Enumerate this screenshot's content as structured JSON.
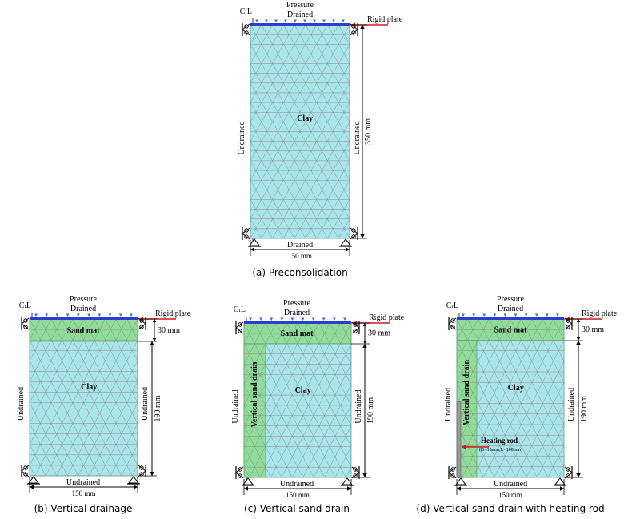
{
  "panels": [
    {
      "id": "a",
      "caption": "(a) Preconsolidation",
      "centerline": "CₗL",
      "top_load": "Pressure",
      "top_drain": "Drained",
      "rigid_plate": "Rigid plate",
      "left_boundary": "Undrained",
      "right_boundary": "Undrained",
      "bottom_boundary": "Drained",
      "width_dim": "150 mm",
      "height_dim": "350 mm",
      "clay_label": "Clay"
    },
    {
      "id": "b",
      "caption": "(b) Vertical drainage",
      "centerline": "CₗL",
      "top_load": "Pressure",
      "top_drain": "Drained",
      "rigid_plate": "Rigid plate",
      "left_boundary": "Undrained",
      "right_boundary": "Undrained",
      "bottom_boundary": "Undrained",
      "width_dim": "150 mm",
      "sand_mat_dim": "30 mm",
      "height_dim": "190 mm",
      "sand_mat_label": "Sand mat",
      "clay_label": "Clay"
    },
    {
      "id": "c",
      "caption": "(c) Vertical sand drain",
      "centerline": "CₗL",
      "top_load": "Pressure",
      "top_drain": "Drained",
      "rigid_plate": "Rigid plate",
      "left_boundary": "Undrained",
      "right_boundary": "Undrained",
      "bottom_boundary": "Undrained",
      "width_dim": "150 mm",
      "sand_mat_dim": "30 mm",
      "height_dim": "190 mm",
      "sand_mat_label": "Sand mat",
      "clay_label": "Clay",
      "drain_label": "Vertical sand drain"
    },
    {
      "id": "d",
      "caption": "(d) Vertical sand drain with heating rod",
      "centerline": "CₗL",
      "top_load": "Pressure",
      "top_drain": "Drained",
      "rigid_plate": "Rigid plate",
      "left_boundary": "Undrained",
      "right_boundary": "Undrained",
      "bottom_boundary": "Undrained",
      "width_dim": "150 mm",
      "sand_mat_dim": "30 mm",
      "height_dim": "190 mm",
      "sand_mat_label": "Sand mat",
      "clay_label": "Clay",
      "drain_label": "Vertical sand drain",
      "heating_rod_label": "Heating rod",
      "heating_rod_spec": "(D=10mm;L=100mm)"
    }
  ],
  "colors": {
    "clay": "#a9e6ec",
    "sand": "#8fdd98",
    "mesh": "#8a8a8a",
    "plate": "#2a3fd0",
    "arrow_blue": "#3a6fd8",
    "rigid_arrow": "#d01818",
    "line": "#000000"
  }
}
